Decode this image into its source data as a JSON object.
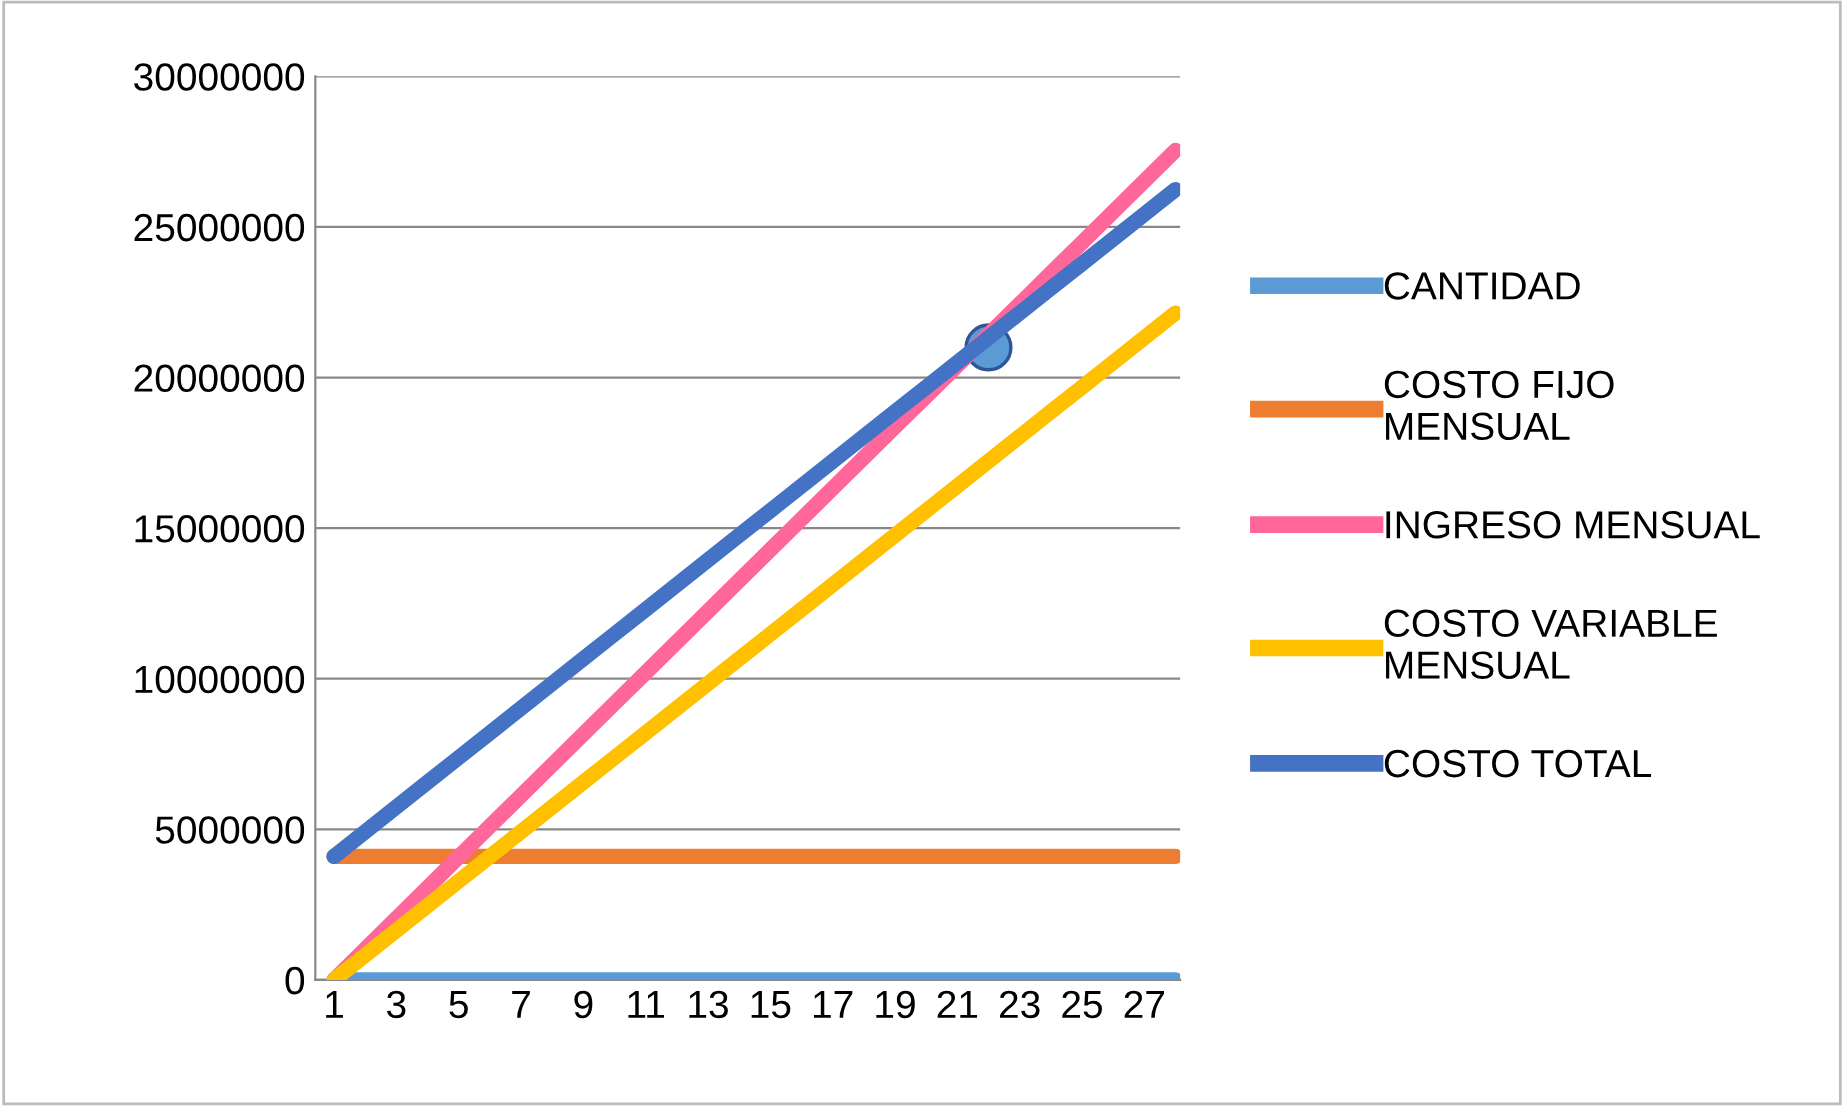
{
  "chart_data": {
    "type": "line",
    "categories": [
      "1",
      null,
      "3",
      null,
      "5",
      null,
      "7",
      null,
      "9",
      null,
      "11",
      null,
      "13",
      null,
      "15",
      null,
      "17",
      null,
      "19",
      null,
      "21",
      null,
      "23",
      null,
      "25",
      null,
      "27",
      null
    ],
    "series": [
      {
        "name": "CANTIDAD",
        "color": "#5b9bd5",
        "values": [
          0,
          0,
          0,
          0,
          0,
          0,
          0,
          0,
          0,
          0,
          0,
          0,
          0,
          0,
          0,
          0,
          0,
          0,
          0,
          0,
          0,
          0,
          0,
          0,
          0,
          0,
          0,
          0
        ]
      },
      {
        "name": "COSTO FIJO\nMENSUAL",
        "color": "#ed7d31",
        "values": [
          4100000,
          4100000,
          4100000,
          4100000,
          4100000,
          4100000,
          4100000,
          4100000,
          4100000,
          4100000,
          4100000,
          4100000,
          4100000,
          4100000,
          4100000,
          4100000,
          4100000,
          4100000,
          4100000,
          4100000,
          4100000,
          4100000,
          4100000,
          4100000,
          4100000,
          4100000,
          4100000,
          4100000
        ]
      },
      {
        "name": "INGRESO MENSUAL",
        "color": "#ff6699",
        "values": [
          0,
          1020000,
          2040000,
          3060000,
          4080000,
          5100000,
          6120000,
          7140000,
          8160000,
          9180000,
          10200000,
          11220000,
          12240000,
          13260000,
          14280000,
          15300000,
          16320000,
          17340000,
          18360000,
          19380000,
          20400000,
          21420000,
          22440000,
          23460000,
          24480000,
          25500000,
          26520000,
          27540000
        ]
      },
      {
        "name": "COSTO VARIABLE\nMENSUAL",
        "color": "#ffc000",
        "values": [
          0,
          820000,
          1640000,
          2460000,
          3280000,
          4100000,
          4920000,
          5740000,
          6560000,
          7380000,
          8200000,
          9020000,
          9840000,
          10660000,
          11480000,
          12300000,
          13120000,
          13940000,
          14760000,
          15580000,
          16400000,
          17220000,
          18040000,
          18860000,
          19680000,
          20500000,
          21320000,
          22140000
        ]
      },
      {
        "name": "COSTO TOTAL",
        "color": "#4472c4",
        "values": [
          4100000,
          4920000,
          5740000,
          6560000,
          7380000,
          8200000,
          9020000,
          9840000,
          10660000,
          11480000,
          12300000,
          13120000,
          13940000,
          14760000,
          15580000,
          16400000,
          17220000,
          18040000,
          18860000,
          19680000,
          20500000,
          21320000,
          22140000,
          22960000,
          23780000,
          24600000,
          25420000,
          26240000
        ]
      },
      {
        "type": "scatter",
        "color": "#5b9bd5",
        "marker": "circle",
        "values": [
          null,
          null,
          null,
          null,
          null,
          null,
          null,
          null,
          null,
          null,
          null,
          null,
          null,
          null,
          null,
          null,
          null,
          null,
          null,
          null,
          null,
          21000000,
          null,
          null,
          null,
          null,
          null,
          null
        ]
      }
    ],
    "ylim": [
      0,
      30000000
    ],
    "yticks": [
      0,
      5000000,
      10000000,
      15000000,
      20000000,
      25000000,
      30000000
    ],
    "grid": "y",
    "legend": "right",
    "marker": "none",
    "line_style": "solid"
  }
}
